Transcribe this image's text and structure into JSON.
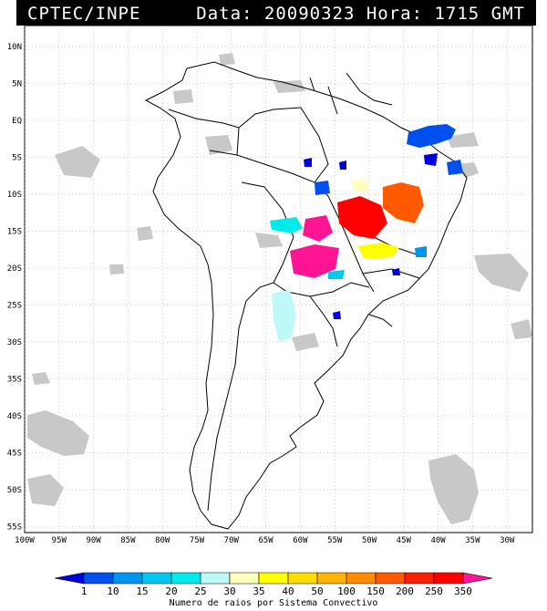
{
  "header": {
    "left": "CPTEC/INPE",
    "right": "Data: 20090323 Hora: 1715 GMT"
  },
  "axes": {
    "lat_labels": [
      "10N",
      "5N",
      "EQ",
      "5S",
      "10S",
      "15S",
      "20S",
      "25S",
      "30S",
      "35S",
      "40S",
      "45S",
      "50S",
      "55S"
    ],
    "lon_labels": [
      "100W",
      "95W",
      "90W",
      "85W",
      "80W",
      "75W",
      "70W",
      "65W",
      "60W",
      "55W",
      "50W",
      "45W",
      "40W",
      "35W",
      "30W"
    ]
  },
  "colorbar": {
    "ticks": [
      "1",
      "10",
      "15",
      "20",
      "25",
      "30",
      "35",
      "40",
      "50",
      "100",
      "150",
      "200",
      "250",
      "350"
    ],
    "colors": [
      "#0000dd",
      "#0050f0",
      "#0096f0",
      "#00c8f0",
      "#00ecec",
      "#bff8f8",
      "#ffffbf",
      "#ffff00",
      "#ffdc00",
      "#ffb400",
      "#ff8c00",
      "#ff5a00",
      "#ff2000",
      "#ff0000",
      "#ff1493"
    ],
    "caption": "Numero de raios por Sistema Convectivo"
  },
  "colors": {
    "cloud": "#c8c8c8",
    "coast": "#000000",
    "grid": "#9a9a9a"
  }
}
